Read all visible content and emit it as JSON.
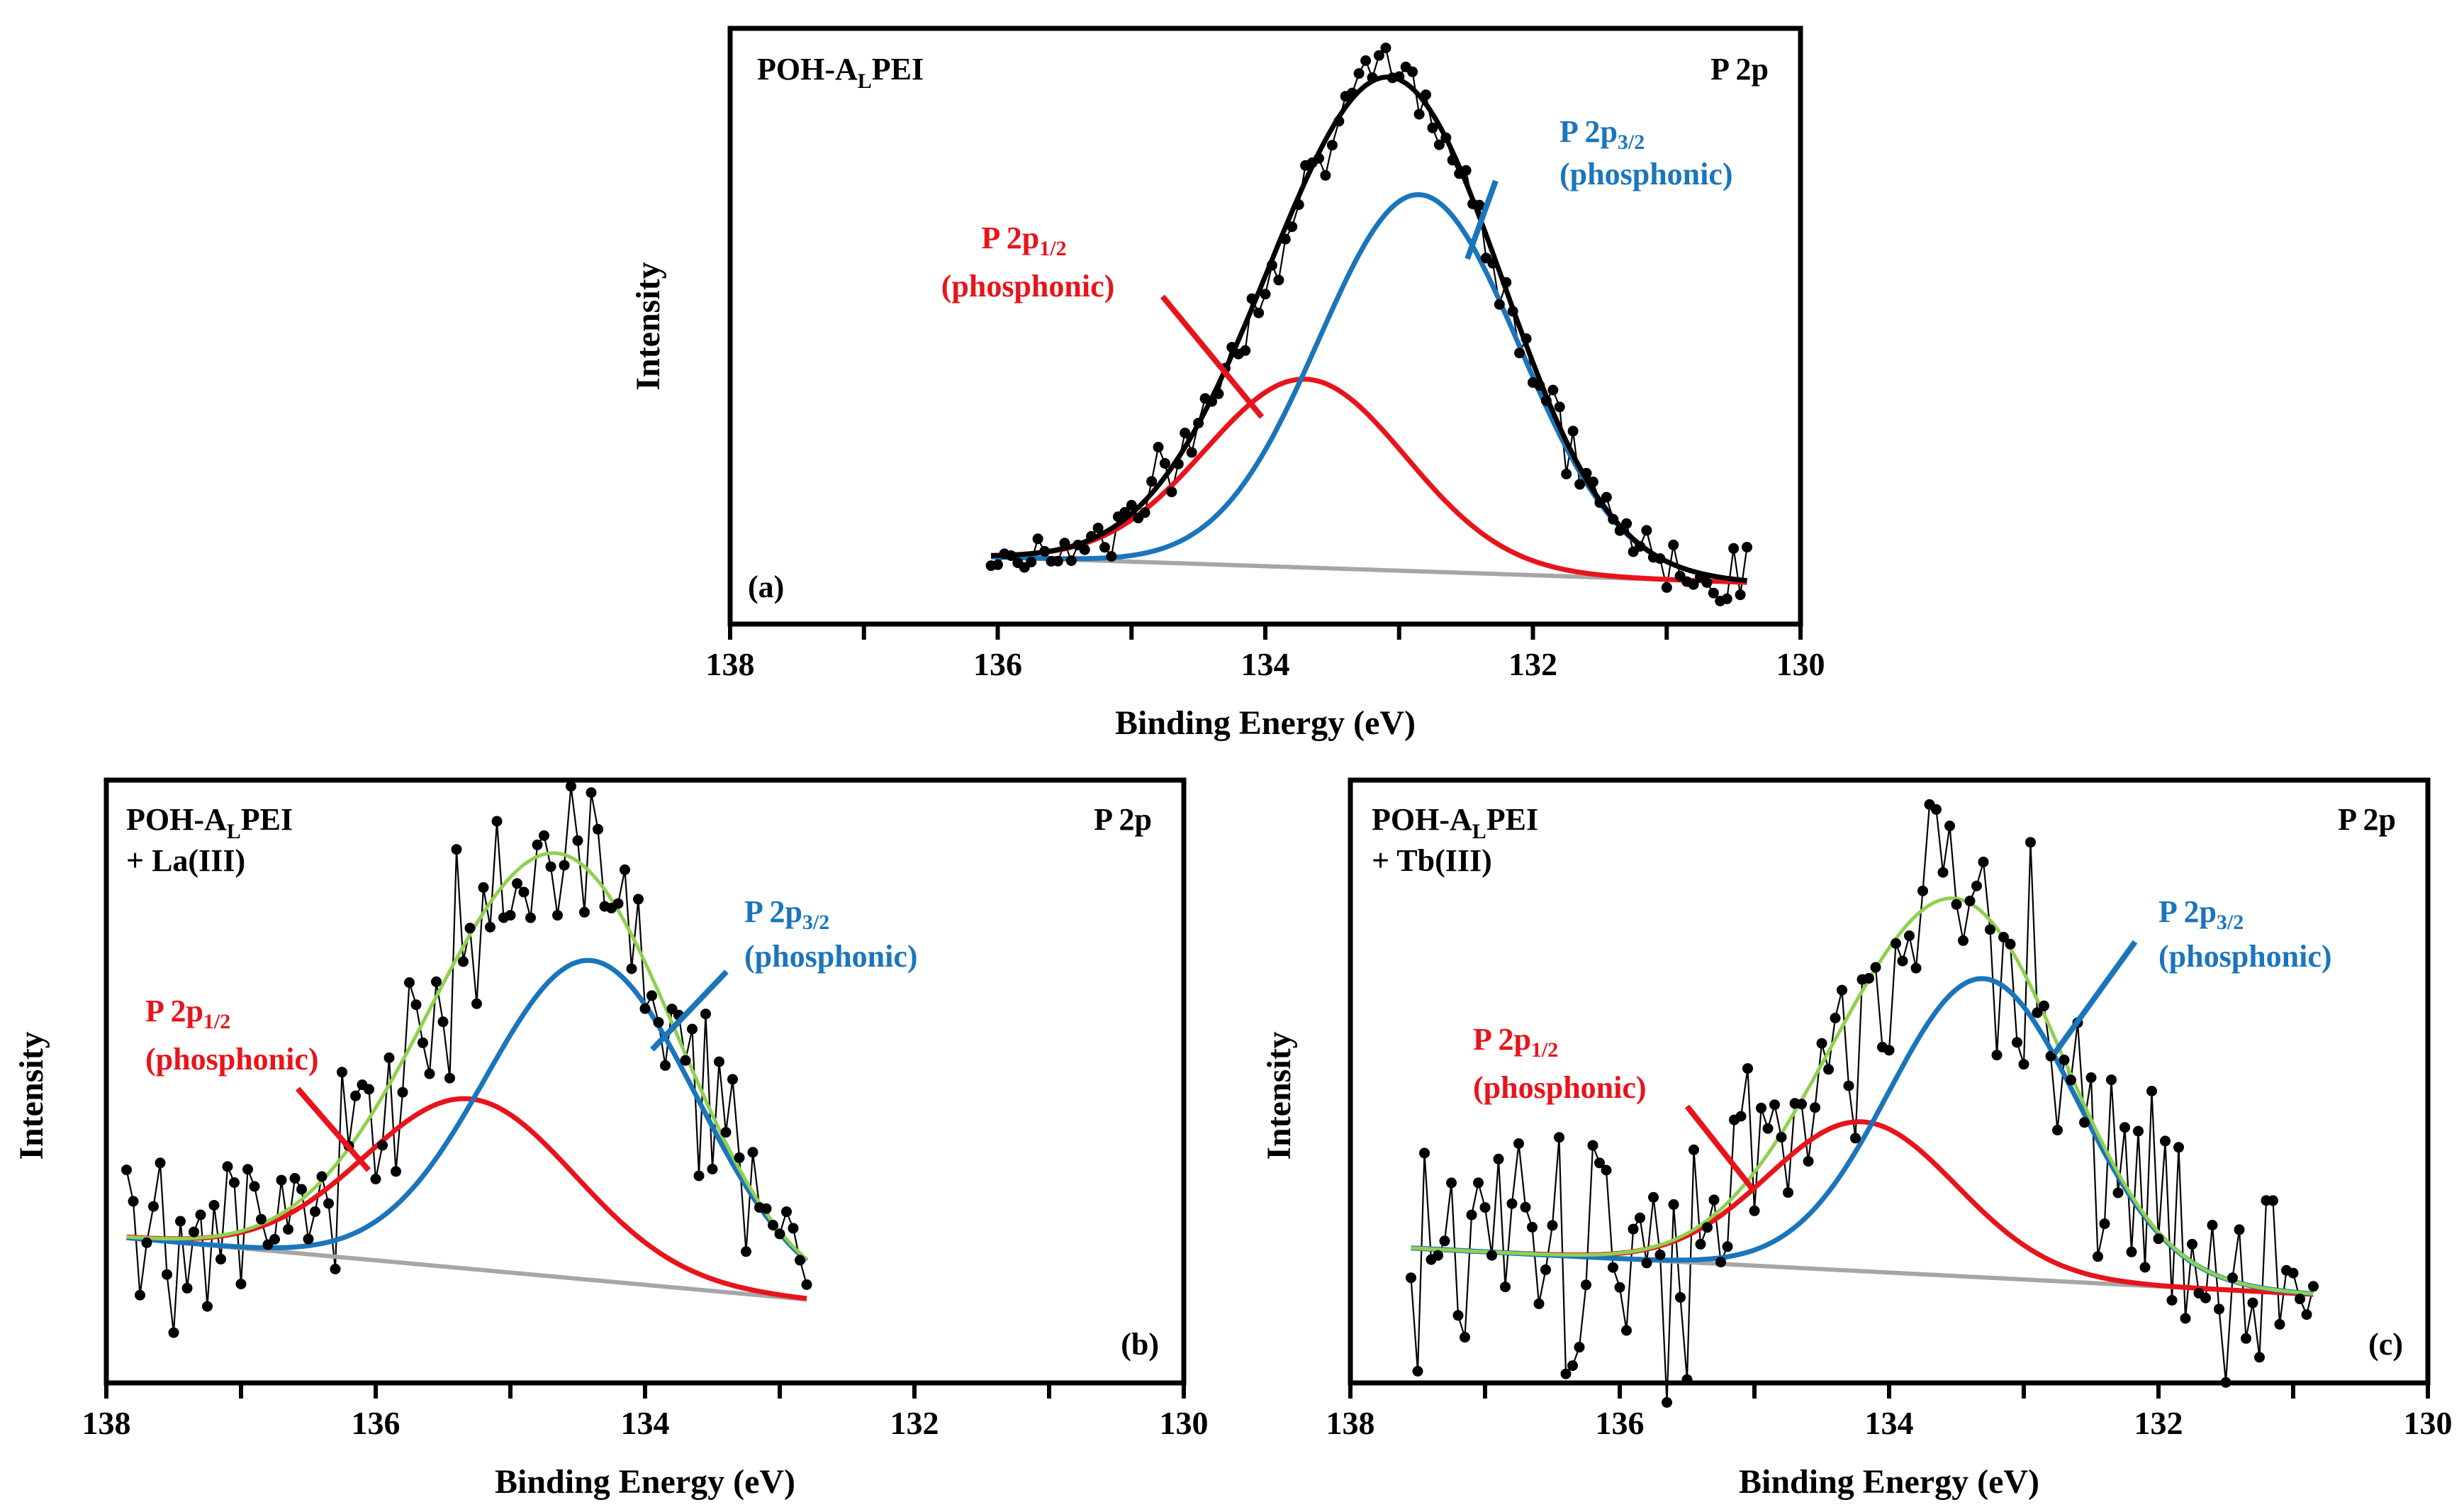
{
  "chart_data": [
    {
      "panel": "a",
      "type": "scatter",
      "title": "POH-A",
      "title_sub": "L",
      "title_tail": "PEI",
      "title_line2": "",
      "peak_label": "P 2p",
      "panel_label": "(a)",
      "xlabel": "Binding Energy (eV)",
      "ylabel": "Intensity",
      "xlim": [
        138,
        130
      ],
      "ylim": [
        0,
        1.1
      ],
      "xticks": [
        "138",
        "137",
        "136",
        "135",
        "134",
        "133",
        "132",
        "131",
        "130"
      ],
      "xtick_labels": [
        "138",
        "136",
        "134",
        "132",
        "130"
      ],
      "data_range": [
        136.05,
        130.4
      ],
      "noise": 0.03,
      "seed": 7,
      "components": [
        {
          "name": "P 2p1/2 (phosphonic)",
          "center": 133.7,
          "height": 0.37,
          "sigma": 0.75,
          "color": "#e8141b"
        },
        {
          "name": "P 2p3/2 (phosphonic)",
          "center": 132.85,
          "height": 0.74,
          "sigma": 0.75,
          "color": "#1b75bb"
        }
      ],
      "background": {
        "left": 0.05,
        "right": 0.0,
        "color": "#a6a6a6"
      },
      "envelope_color": "#000000",
      "annotation_red": {
        "main": "P 2p",
        "sub": "1/2",
        "line2": "(phosphonic)"
      },
      "annotation_blue": {
        "main": "P 2p",
        "sub": "3/2",
        "line2": "(phosphonic)"
      }
    },
    {
      "panel": "b",
      "type": "scatter",
      "title": "POH-A",
      "title_sub": "L",
      "title_tail": "PEI",
      "title_line2": "+ La(III)",
      "peak_label": "P 2p",
      "panel_label": "(b)",
      "xlabel": "Binding Energy (eV)",
      "ylabel": "Intensity",
      "xlim": [
        138,
        130
      ],
      "ylim": [
        0,
        1.1
      ],
      "xticks": [
        "138",
        "137",
        "136",
        "135",
        "134",
        "133",
        "132",
        "131",
        "130"
      ],
      "xtick_labels": [
        "138",
        "136",
        "134",
        "132",
        "130"
      ],
      "data_range": [
        137.85,
        132.8
      ],
      "noise": 0.09,
      "seed": 19,
      "components": [
        {
          "name": "P 2p1/2 (phosphonic)",
          "center": 135.3,
          "height": 0.33,
          "sigma": 0.78,
          "color": "#e8141b"
        },
        {
          "name": "P 2p3/2 (phosphonic)",
          "center": 134.4,
          "height": 0.62,
          "sigma": 0.78,
          "color": "#1b75bb"
        }
      ],
      "background": {
        "left": 0.2,
        "right": 0.08,
        "color": "#a6a6a6"
      },
      "envelope_color": "#8fd14f",
      "annotation_red": {
        "main": "P 2p",
        "sub": "1/2",
        "line2": "(phosphonic)"
      },
      "annotation_blue": {
        "main": "P 2p",
        "sub": "3/2",
        "line2": "(phosphonic)"
      }
    },
    {
      "panel": "c",
      "type": "scatter",
      "title": "POH-A",
      "title_sub": "L",
      "title_tail": "PEI",
      "title_line2": "+ Tb(III)",
      "peak_label": "P 2p",
      "panel_label": "(c)",
      "xlabel": "Binding Energy (eV)",
      "ylabel": "Intensity",
      "xlim": [
        138,
        130
      ],
      "ylim": [
        0,
        1.1
      ],
      "xticks": [
        "138",
        "137",
        "136",
        "135",
        "134",
        "133",
        "132",
        "131",
        "130"
      ],
      "xtick_labels": [
        "138",
        "136",
        "134",
        "132",
        "130"
      ],
      "data_range": [
        137.55,
        130.85
      ],
      "noise": 0.13,
      "seed": 31,
      "components": [
        {
          "name": "P 2p1/2 (phosphonic)",
          "center": 134.2,
          "height": 0.29,
          "sigma": 0.7,
          "color": "#e8141b"
        },
        {
          "name": "P 2p3/2 (phosphonic)",
          "center": 133.3,
          "height": 0.58,
          "sigma": 0.7,
          "color": "#1b75bb"
        }
      ],
      "background": {
        "left": 0.18,
        "right": 0.09,
        "color": "#a6a6a6"
      },
      "envelope_color": "#8fd14f",
      "annotation_red": {
        "main": "P 2p",
        "sub": "1/2",
        "line2": "(phosphonic)"
      },
      "annotation_blue": {
        "main": "P 2p",
        "sub": "3/2",
        "line2": "(phosphonic)"
      }
    }
  ]
}
